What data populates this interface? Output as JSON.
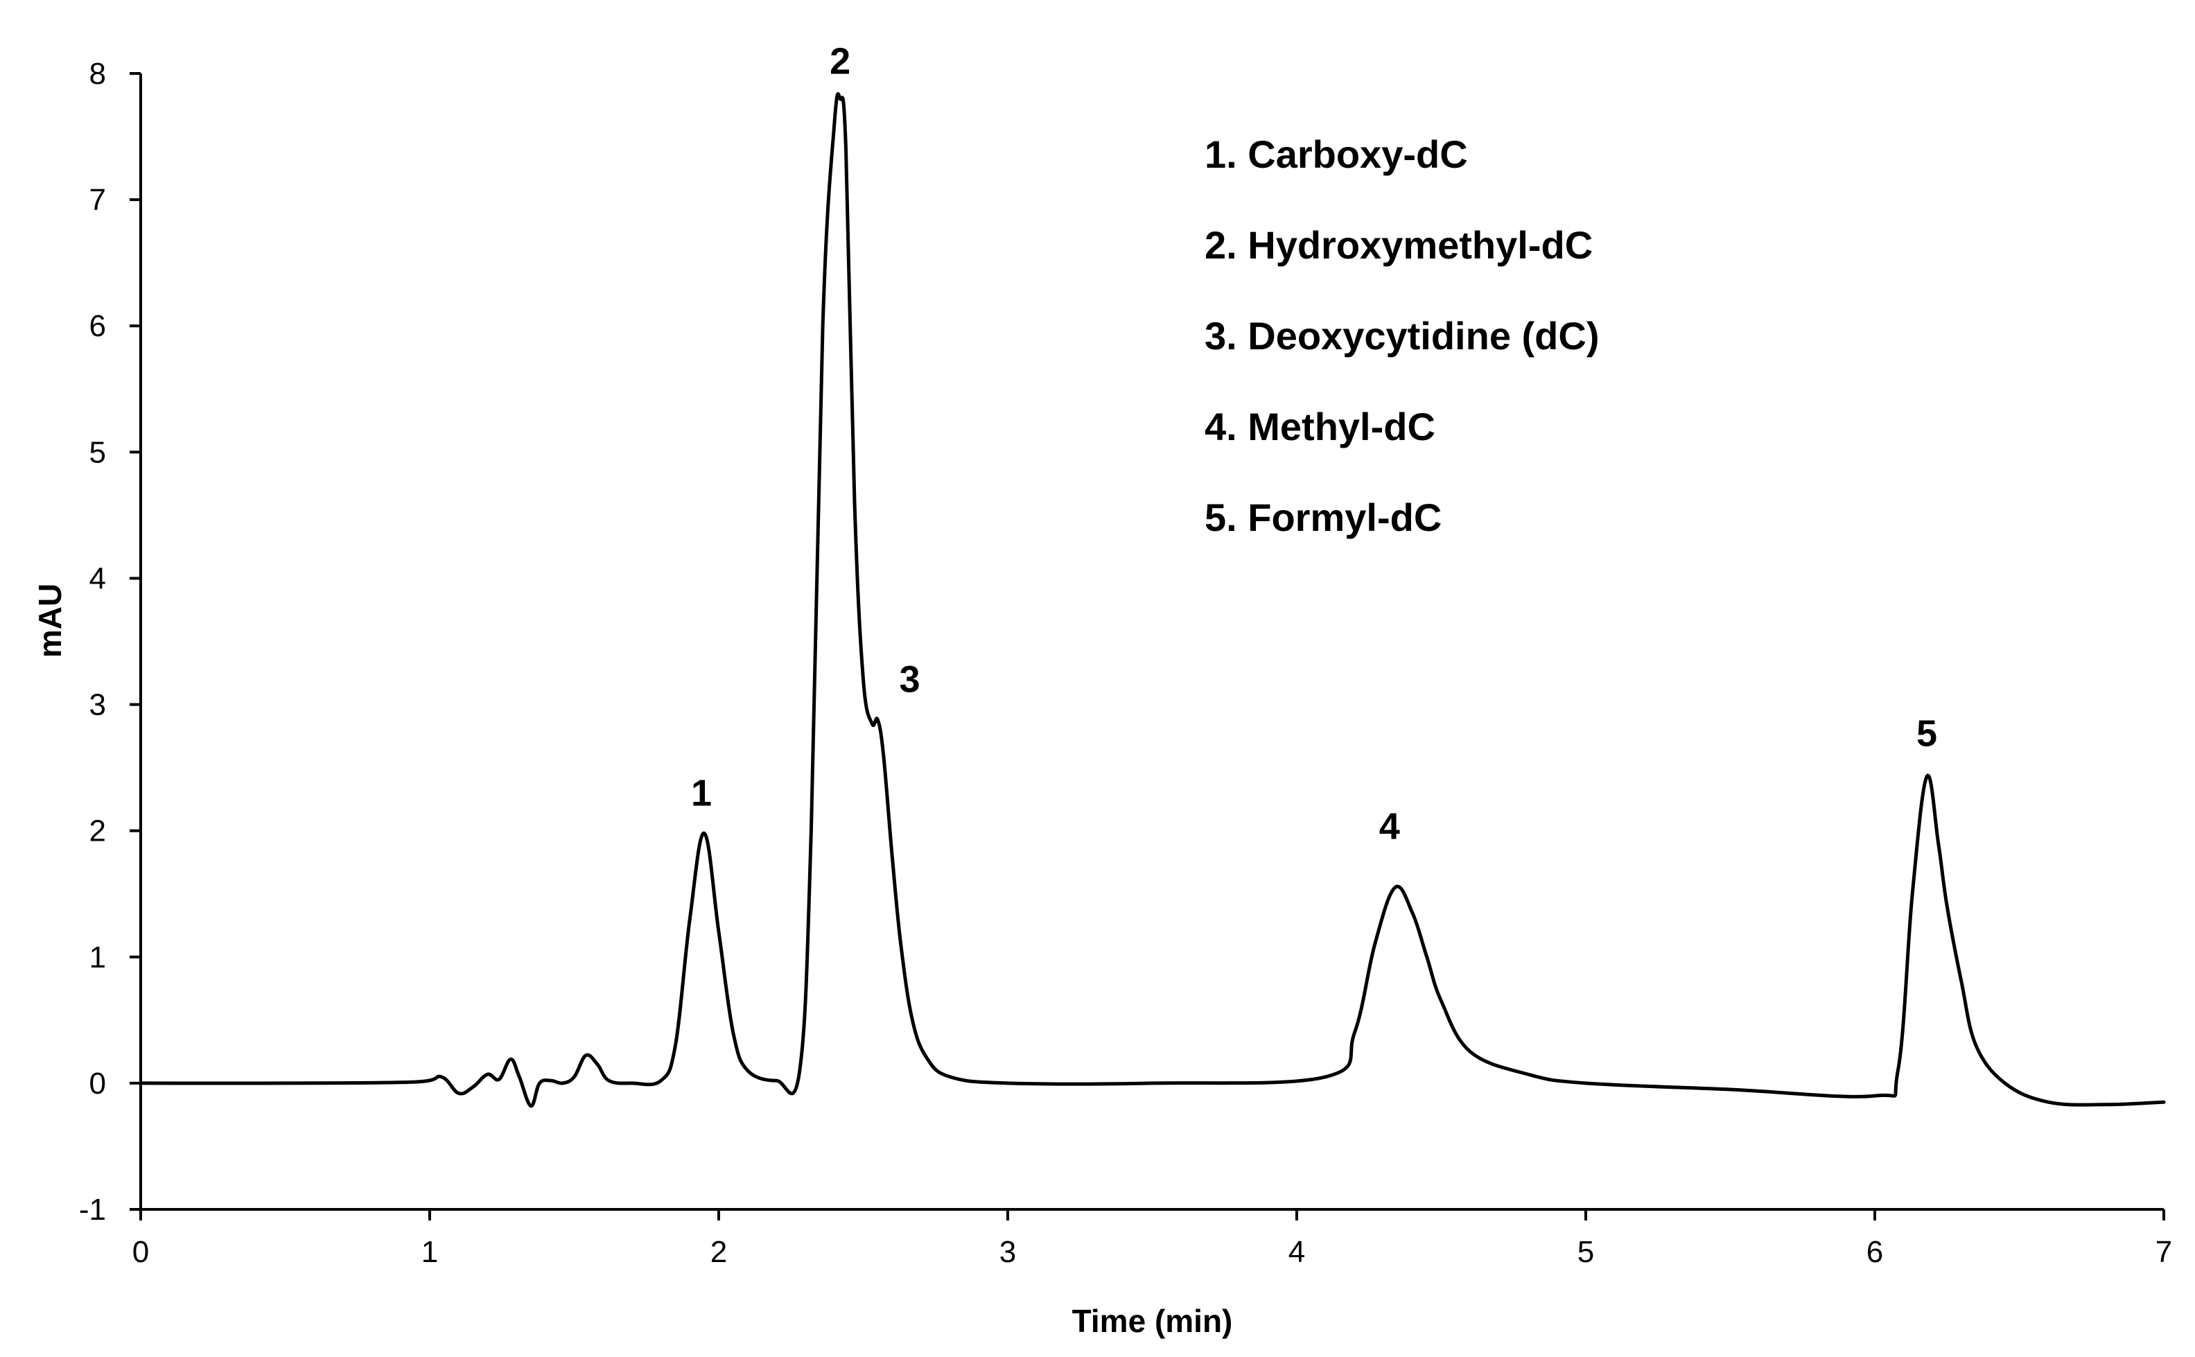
{
  "chart_data": {
    "type": "line",
    "title": "",
    "xlabel": "Time (min)",
    "ylabel": "mAU",
    "xlim": [
      0,
      7
    ],
    "ylim": [
      -1,
      8
    ],
    "xticks": [
      "0",
      "1",
      "2",
      "3",
      "4",
      "5",
      "6",
      "7"
    ],
    "yticks": [
      "-1",
      "0",
      "1",
      "2",
      "3",
      "4",
      "5",
      "6",
      "7",
      "8"
    ],
    "grid": false,
    "series_color": "#000000",
    "series": [
      {
        "x": [
          0,
          0.5,
          0.95,
          1.04,
          1.1,
          1.15,
          1.2,
          1.24,
          1.28,
          1.31,
          1.35,
          1.38,
          1.42,
          1.46,
          1.5,
          1.54,
          1.58,
          1.62,
          1.7,
          1.8,
          1.85,
          1.9,
          1.95,
          2.0,
          2.05,
          2.1,
          2.2,
          2.28,
          2.32,
          2.36,
          2.4,
          2.42,
          2.44,
          2.47,
          2.5,
          2.53,
          2.55,
          2.57,
          2.6,
          2.63,
          2.67,
          2.72,
          2.8,
          3.0,
          3.5,
          4.1,
          4.2,
          4.27,
          4.34,
          4.4,
          4.45,
          4.5,
          4.6,
          4.8,
          5.0,
          5.5,
          6.0,
          6.08,
          6.13,
          6.18,
          6.22,
          6.25,
          6.3,
          6.35,
          6.45,
          6.6,
          6.8,
          7.0
        ],
        "y": [
          0,
          0,
          0.01,
          0.05,
          -0.08,
          -0.03,
          0.07,
          0.03,
          0.19,
          0.05,
          -0.18,
          0.0,
          0.02,
          0.0,
          0.05,
          0.22,
          0.15,
          0.02,
          0.0,
          0.02,
          0.3,
          1.3,
          1.98,
          1.2,
          0.4,
          0.1,
          0.02,
          0.1,
          2.0,
          6.0,
          7.6,
          7.8,
          7.4,
          4.6,
          3.2,
          2.85,
          2.88,
          2.6,
          1.8,
          1.1,
          0.5,
          0.2,
          0.05,
          0.0,
          0.0,
          0.05,
          0.4,
          1.1,
          1.55,
          1.35,
          1.0,
          0.65,
          0.25,
          0.07,
          0.0,
          -0.05,
          -0.1,
          0.1,
          1.5,
          2.43,
          1.9,
          1.4,
          0.8,
          0.3,
          0.0,
          -0.15,
          -0.17,
          -0.15
        ]
      }
    ],
    "peaks": [
      {
        "label": "1",
        "x": 1.94,
        "y": 1.98
      },
      {
        "label": "2",
        "x": 2.42,
        "y": 7.8
      },
      {
        "label": "3",
        "x": 2.56,
        "y": 2.88
      },
      {
        "label": "4",
        "x": 4.34,
        "y": 1.55
      },
      {
        "label": "5",
        "x": 6.18,
        "y": 2.43
      }
    ],
    "legend_placement": "top-right",
    "legend": [
      "1. Carboxy-dC",
      "2. Hydroxymethyl-dC",
      "3. Deoxycytidine (dC)",
      "4. Methyl-dC",
      "5. Formyl-dC"
    ]
  }
}
